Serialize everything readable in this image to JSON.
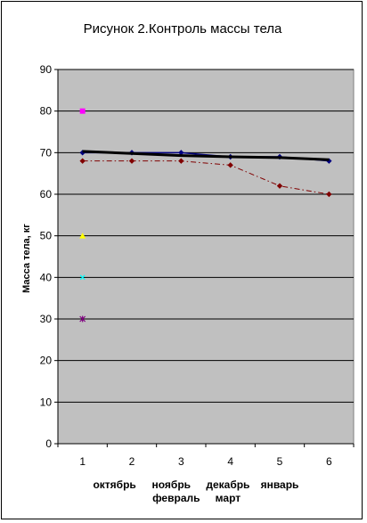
{
  "chart_data": {
    "type": "line",
    "title": "Рисунок 2.Контроль массы тела",
    "ylabel": "Масса тела, кг",
    "xlabel": "",
    "ylim": [
      0,
      90
    ],
    "yticks": [
      0,
      10,
      20,
      30,
      40,
      50,
      60,
      70,
      80,
      90
    ],
    "x": [
      1,
      2,
      3,
      4,
      5,
      6
    ],
    "month_labels": [
      {
        "text": "октябрь",
        "row": 1,
        "at": 1.65
      },
      {
        "text": "ноябрь",
        "row": 1,
        "at": 2.8
      },
      {
        "text": "декабрь",
        "row": 1,
        "at": 3.95
      },
      {
        "text": "январь",
        "row": 1,
        "at": 5.0
      },
      {
        "text": "февраль",
        "row": 2,
        "at": 2.9
      },
      {
        "text": "март",
        "row": 2,
        "at": 3.95
      }
    ],
    "grid": true,
    "plot_background": "#c0c0c0",
    "series": [
      {
        "values": [
          70,
          70,
          70,
          69,
          69,
          68
        ],
        "color": "#000080",
        "marker": "diamond",
        "style": "solid"
      },
      {
        "values": [
          68,
          68,
          68,
          67,
          62,
          60
        ],
        "color": "#800000",
        "marker": "diamond",
        "style": "dashdot"
      },
      {
        "values": [
          70.3,
          69.8,
          69.3,
          69,
          68.8,
          68.3
        ],
        "color": "#000000",
        "marker": "none",
        "style": "bold"
      }
    ],
    "single_points": [
      {
        "x": 1,
        "y": 80,
        "color": "#ff00ff",
        "marker": "square"
      },
      {
        "x": 1,
        "y": 50,
        "color": "#ffff00",
        "marker": "triangle"
      },
      {
        "x": 1,
        "y": 40,
        "color": "#00ffff",
        "marker": "x"
      },
      {
        "x": 1,
        "y": 30,
        "color": "#800080",
        "marker": "star"
      }
    ]
  }
}
